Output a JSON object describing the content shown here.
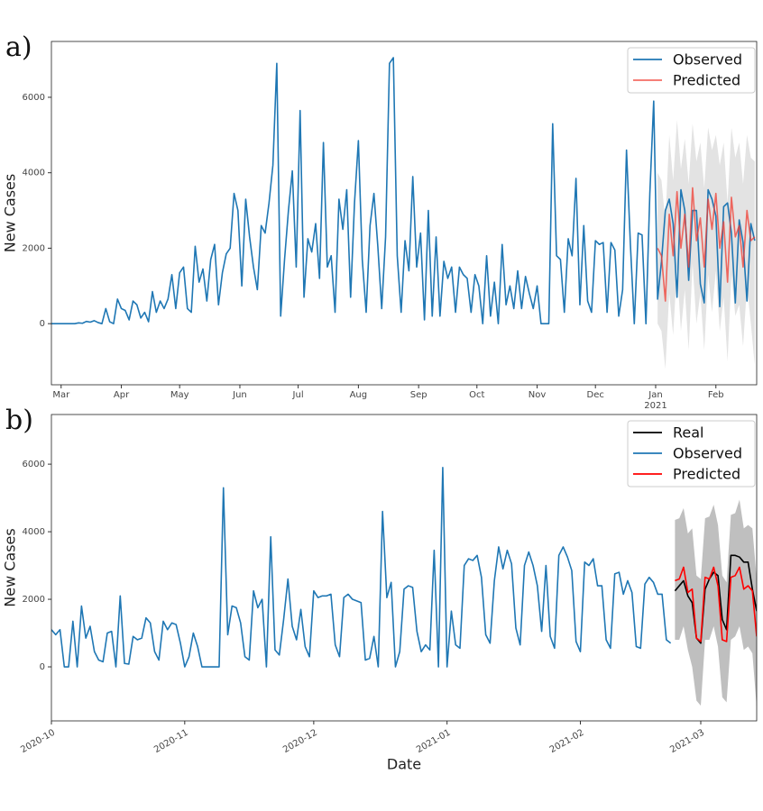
{
  "chart_data": [
    {
      "type": "line",
      "panel_label": "a)",
      "ylabel": "New Cases",
      "legend": "upper right",
      "xlim": [
        -5,
        358
      ],
      "ylim": [
        -1620,
        7480
      ],
      "xticks": [
        {
          "value": 0,
          "label": "Mar"
        },
        {
          "value": 31,
          "label": "Apr"
        },
        {
          "value": 61,
          "label": "May"
        },
        {
          "value": 92,
          "label": "Jun"
        },
        {
          "value": 122,
          "label": "Jul"
        },
        {
          "value": 153,
          "label": "Aug"
        },
        {
          "value": 184,
          "label": "Sep"
        },
        {
          "value": 214,
          "label": "Oct"
        },
        {
          "value": 245,
          "label": "Nov"
        },
        {
          "value": 275,
          "label": "Dec"
        },
        {
          "value": 306,
          "label": "Jan"
        },
        {
          "value": 337,
          "label": "Feb"
        }
      ],
      "x_offset_label": "2021",
      "yticks": [
        0,
        2000,
        4000,
        6000
      ],
      "interval": {
        "color": "#b0b0b0",
        "opacity": 0.35,
        "x": [
          307,
          309,
          311,
          313,
          315,
          317,
          319,
          321,
          323,
          325,
          327,
          329,
          331,
          333,
          335,
          337,
          339,
          341,
          343,
          345,
          347,
          349,
          351,
          353,
          355,
          357
        ],
        "lower": [
          0,
          -200,
          -1200,
          800,
          -300,
          1500,
          -200,
          900,
          -700,
          1600,
          0,
          800,
          -700,
          1300,
          300,
          1400,
          -200,
          700,
          -1000,
          1300,
          200,
          500,
          -600,
          1000,
          0,
          -1100
        ],
        "upper": [
          4000,
          3800,
          2700,
          5000,
          3800,
          5400,
          4100,
          4900,
          3700,
          5300,
          4300,
          4800,
          3600,
          5200,
          4600,
          5000,
          4200,
          4800,
          3200,
          5200,
          4400,
          4800,
          3700,
          5000,
          4400,
          4300
        ]
      },
      "series": [
        {
          "name": "Observed",
          "color": "#1f77b4",
          "opacity": 1,
          "x": [
            -5,
            -3,
            -1,
            1,
            3,
            5,
            7,
            9,
            11,
            13,
            15,
            17,
            19,
            21,
            23,
            25,
            27,
            29,
            31,
            33,
            35,
            37,
            39,
            41,
            43,
            45,
            47,
            49,
            51,
            53,
            55,
            57,
            59,
            61,
            63,
            65,
            67,
            69,
            71,
            73,
            75,
            77,
            79,
            81,
            83,
            85,
            87,
            89,
            91,
            93,
            95,
            97,
            99,
            101,
            103,
            105,
            107,
            109,
            111,
            113,
            115,
            117,
            119,
            121,
            123,
            125,
            127,
            129,
            131,
            133,
            135,
            137,
            139,
            141,
            143,
            145,
            147,
            149,
            151,
            153,
            155,
            157,
            159,
            161,
            163,
            165,
            167,
            169,
            171,
            173,
            175,
            177,
            179,
            181,
            183,
            185,
            187,
            189,
            191,
            193,
            195,
            197,
            199,
            201,
            203,
            205,
            207,
            209,
            211,
            213,
            215,
            217,
            219,
            221,
            223,
            225,
            227,
            229,
            231,
            233,
            235,
            237,
            239,
            241,
            243,
            245,
            247,
            249,
            251,
            253,
            255,
            257,
            259,
            261,
            263,
            265,
            267,
            269,
            271,
            273,
            275,
            277,
            279,
            281,
            283,
            285,
            287,
            289,
            291,
            293,
            295,
            297,
            299,
            301,
            303,
            305,
            307,
            309,
            311,
            313,
            315,
            317,
            319,
            321,
            323,
            325,
            327,
            329,
            331,
            333,
            335,
            337,
            339,
            341,
            343,
            345,
            347,
            349,
            351,
            353,
            355,
            357
          ],
          "values": [
            0,
            0,
            0,
            0,
            0,
            0,
            0,
            20,
            10,
            60,
            40,
            80,
            30,
            0,
            400,
            50,
            0,
            650,
            400,
            350,
            100,
            600,
            500,
            150,
            300,
            50,
            850,
            300,
            600,
            400,
            650,
            1300,
            400,
            1350,
            1500,
            400,
            300,
            2050,
            1100,
            1450,
            600,
            1700,
            2100,
            500,
            1350,
            1850,
            2000,
            3450,
            3000,
            1000,
            3300,
            2300,
            1500,
            900,
            2600,
            2400,
            3200,
            4200,
            6900,
            200,
            1700,
            3000,
            4050,
            1500,
            5650,
            700,
            2250,
            1900,
            2650,
            1200,
            4800,
            1500,
            1800,
            300,
            3300,
            2500,
            3550,
            700,
            3200,
            4850,
            1700,
            300,
            2600,
            3450,
            2050,
            400,
            2300,
            6900,
            7050,
            1800,
            300,
            2200,
            1400,
            3900,
            1500,
            2400,
            100,
            3000,
            200,
            2300,
            200,
            1650,
            1200,
            1500,
            300,
            1500,
            1300,
            1200,
            300,
            1300,
            1000,
            0,
            1800,
            200,
            1100,
            0,
            2100,
            500,
            1000,
            400,
            1400,
            400,
            1250,
            800,
            400,
            1000,
            0,
            0,
            0,
            5300,
            1800,
            1700,
            300,
            2250,
            1800,
            3850,
            500,
            2600,
            600,
            300,
            2200,
            2100,
            2150,
            300,
            2150,
            1950,
            200,
            900,
            4600,
            2100,
            0,
            2400,
            2350,
            0,
            3450,
            5900,
            650,
            1650,
            3000,
            3300,
            2650,
            700,
            3550,
            3000,
            1150,
            3000,
            3000,
            1050,
            550,
            3550,
            3300,
            2850,
            450,
            3100,
            3200,
            2400,
            550,
            2750,
            2150,
            600,
            2650,
            2200
          ]
        },
        {
          "name": "Predicted",
          "color": "#f03c32",
          "opacity": 0.75,
          "x": [
            307,
            309,
            311,
            313,
            315,
            317,
            319,
            321,
            323,
            325,
            327,
            329,
            331,
            333,
            335,
            337,
            339,
            341,
            343,
            345,
            347,
            349,
            351,
            353,
            355,
            357
          ],
          "values": [
            2000,
            1800,
            600,
            2900,
            1800,
            3500,
            2000,
            2900,
            1500,
            3600,
            2200,
            2800,
            1500,
            3300,
            2500,
            3450,
            2000,
            2700,
            1100,
            3350,
            2300,
            2600,
            1500,
            3000,
            2200,
            2300
          ]
        }
      ]
    },
    {
      "type": "line",
      "panel_label": "b)",
      "ylabel": "New Cases",
      "xlabel": "Date",
      "legend": "upper right",
      "xlim": [
        0,
        164
      ],
      "ylim": [
        -1600,
        7470
      ],
      "xticks": [
        {
          "value": 0,
          "label": "2020-10"
        },
        {
          "value": 31,
          "label": "2020-11"
        },
        {
          "value": 61,
          "label": "2020-12"
        },
        {
          "value": 92,
          "label": "2021-01"
        },
        {
          "value": 123,
          "label": "2021-02"
        },
        {
          "value": 151,
          "label": "2021-03"
        }
      ],
      "xtick_rotation": 30,
      "yticks": [
        0,
        2000,
        4000,
        6000
      ],
      "interval": {
        "color": "#808080",
        "opacity": 0.5,
        "x": [
          145,
          146,
          147,
          148,
          149,
          150,
          151,
          152,
          153,
          154,
          155,
          156,
          157,
          158,
          159,
          160,
          161,
          162,
          163,
          164
        ],
        "lower": [
          800,
          800,
          1200,
          500,
          0,
          -1000,
          -1150,
          800,
          800,
          1200,
          600,
          -900,
          -1050,
          800,
          900,
          1200,
          500,
          600,
          400,
          -1200
        ],
        "upper": [
          4350,
          4400,
          4700,
          3950,
          4100,
          2700,
          2600,
          4400,
          4450,
          4800,
          4200,
          2700,
          2500,
          4500,
          4550,
          4950,
          4100,
          4200,
          4100,
          2600
        ]
      },
      "series": [
        {
          "name": "Real",
          "color": "#000000",
          "opacity": 1,
          "x": [
            145,
            146,
            147,
            148,
            149,
            150,
            151,
            152,
            153,
            154,
            155,
            156,
            157,
            158,
            159,
            160,
            161,
            162,
            163,
            164
          ],
          "values": [
            2250,
            2400,
            2550,
            2100,
            1900,
            850,
            700,
            2300,
            2600,
            2800,
            2700,
            1400,
            1100,
            3300,
            3300,
            3250,
            3100,
            3100,
            2300,
            1650
          ]
        },
        {
          "name": "Observed",
          "color": "#1f77b4",
          "opacity": 1,
          "x": [
            0,
            1,
            2,
            3,
            4,
            5,
            6,
            7,
            8,
            9,
            10,
            11,
            12,
            13,
            14,
            15,
            16,
            17,
            18,
            19,
            20,
            21,
            22,
            23,
            24,
            25,
            26,
            27,
            28,
            29,
            30,
            31,
            32,
            33,
            34,
            35,
            36,
            37,
            38,
            39,
            40,
            41,
            42,
            43,
            44,
            45,
            46,
            47,
            48,
            49,
            50,
            51,
            52,
            53,
            54,
            55,
            56,
            57,
            58,
            59,
            60,
            61,
            62,
            63,
            64,
            65,
            66,
            67,
            68,
            69,
            70,
            71,
            72,
            73,
            74,
            75,
            76,
            77,
            78,
            79,
            80,
            81,
            82,
            83,
            84,
            85,
            86,
            87,
            88,
            89,
            90,
            91,
            92,
            93,
            94,
            95,
            96,
            97,
            98,
            99,
            100,
            101,
            102,
            103,
            104,
            105,
            106,
            107,
            108,
            109,
            110,
            111,
            112,
            113,
            114,
            115,
            116,
            117,
            118,
            119,
            120,
            121,
            122,
            123,
            124,
            125,
            126,
            127,
            128,
            129,
            130,
            131,
            132,
            133,
            134,
            135,
            136,
            137,
            138,
            139,
            140,
            141,
            142,
            143,
            144
          ],
          "values": [
            1100,
            950,
            1100,
            0,
            0,
            1350,
            0,
            1800,
            850,
            1200,
            450,
            200,
            150,
            1000,
            1050,
            0,
            2100,
            100,
            80,
            900,
            800,
            850,
            1450,
            1300,
            450,
            200,
            1350,
            1100,
            1300,
            1250,
            700,
            0,
            300,
            1000,
            600,
            0,
            0,
            0,
            0,
            0,
            5300,
            950,
            1800,
            1750,
            1300,
            300,
            200,
            2250,
            1750,
            2000,
            0,
            3850,
            500,
            350,
            1400,
            2600,
            1200,
            800,
            1700,
            600,
            300,
            2250,
            2050,
            2100,
            2100,
            2150,
            650,
            300,
            2050,
            2150,
            2000,
            1950,
            1900,
            200,
            250,
            900,
            0,
            4600,
            2050,
            2500,
            0,
            450,
            2300,
            2400,
            2350,
            1050,
            450,
            650,
            500,
            3450,
            0,
            5900,
            0,
            1650,
            650,
            550,
            3000,
            3200,
            3150,
            3300,
            2650,
            950,
            700,
            2550,
            3550,
            2900,
            3450,
            3050,
            1150,
            650,
            3000,
            3400,
            3000,
            2400,
            1050,
            3000,
            900,
            550,
            3300,
            3550,
            3250,
            2850,
            750,
            450,
            3100,
            3000,
            3200,
            2400,
            2400,
            800,
            550,
            2750,
            2800,
            2150,
            2550,
            2200,
            600,
            550,
            2450,
            2650,
            2500,
            2150,
            2150,
            800,
            700
          ]
        },
        {
          "name": "Predicted",
          "color": "#ff0000",
          "opacity": 1,
          "x": [
            145,
            146,
            147,
            148,
            149,
            150,
            151,
            152,
            153,
            154,
            155,
            156,
            157,
            158,
            159,
            160,
            161,
            162,
            163,
            164
          ],
          "values": [
            2550,
            2600,
            2950,
            2200,
            2300,
            850,
            750,
            2650,
            2600,
            2950,
            2400,
            800,
            750,
            2650,
            2700,
            2950,
            2300,
            2400,
            2250,
            900
          ]
        }
      ]
    }
  ]
}
